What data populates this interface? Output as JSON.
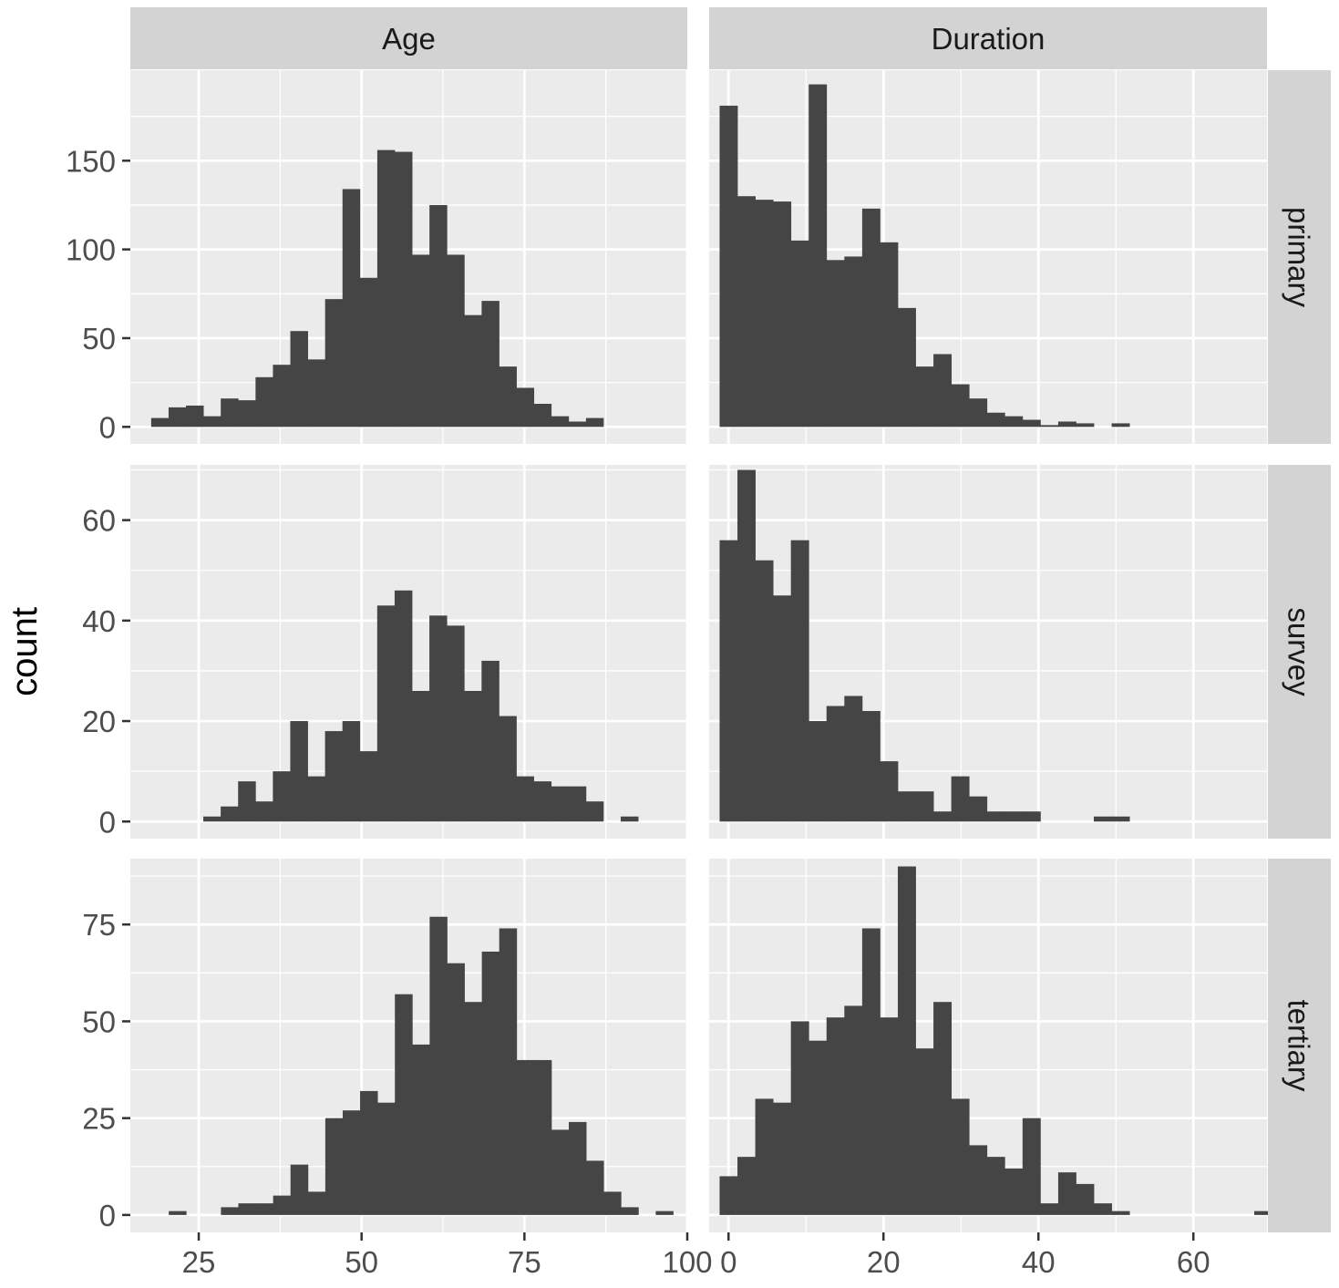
{
  "chart_data": {
    "type": "bar",
    "subtype": "histogram",
    "facet_layout": "grid",
    "ylabel": "count",
    "xlabel": "",
    "scales": "free",
    "colors": {
      "bar": "#454545",
      "panel_bg": "#ebebeb",
      "grid": "#ffffff",
      "strip_bg": "#d3d3d3",
      "tick_text": "#4d4d4d",
      "strip_text": "#1a1a1a"
    },
    "columns": [
      {
        "label": "Age",
        "xlim": [
          14.5,
          100
        ],
        "ticks": [
          25,
          50,
          75,
          100
        ]
      },
      {
        "label": "Duration",
        "xlim": [
          -2.5,
          69.5
        ],
        "ticks": [
          0,
          20,
          40,
          60
        ]
      }
    ],
    "rows": [
      {
        "label": "primary",
        "ylim": [
          -9.6,
          201
        ],
        "ticks": [
          0,
          50,
          100,
          150
        ]
      },
      {
        "label": "survey",
        "ylim": [
          -3.4,
          71
        ],
        "ticks": [
          0,
          20,
          40,
          60
        ]
      },
      {
        "label": "tertiary",
        "ylim": [
          -4.5,
          92
        ],
        "ticks": [
          0,
          25,
          50,
          75
        ]
      }
    ],
    "panels": [
      {
        "row": "primary",
        "column": "Age",
        "bin_start": 17.7,
        "bin_width": 2.67,
        "values": [
          5,
          11,
          12,
          6,
          16,
          15,
          28,
          35,
          54,
          38,
          72,
          134,
          84,
          156,
          155,
          97,
          125,
          97,
          63,
          71,
          34,
          22,
          13,
          6,
          3,
          5
        ]
      },
      {
        "row": "primary",
        "column": "Duration",
        "bin_start": -1.15,
        "bin_width": 2.3,
        "values": [
          181,
          130,
          128,
          127,
          105,
          193,
          94,
          96,
          123,
          104,
          67,
          34,
          41,
          24,
          16,
          8,
          6,
          4,
          1,
          3,
          2,
          0,
          2
        ]
      },
      {
        "row": "survey",
        "column": "Age",
        "bin_start": 25.7,
        "bin_width": 2.67,
        "values": [
          1,
          3,
          8,
          4,
          10,
          20,
          9,
          18,
          20,
          14,
          43,
          46,
          26,
          41,
          39,
          26,
          32,
          21,
          9,
          8,
          7,
          7,
          4,
          0,
          1
        ]
      },
      {
        "row": "survey",
        "column": "Duration",
        "bin_start": -1.15,
        "bin_width": 2.3,
        "values": [
          56,
          70,
          52,
          45,
          56,
          20,
          23,
          25,
          22,
          12,
          6,
          6,
          2,
          9,
          5,
          2,
          2,
          2,
          0,
          0,
          0,
          1,
          1
        ]
      },
      {
        "row": "tertiary",
        "column": "Age",
        "bin_start": 20.4,
        "bin_width": 2.67,
        "values": [
          1,
          0,
          0,
          2,
          3,
          3,
          5,
          13,
          6,
          25,
          27,
          32,
          29,
          57,
          44,
          77,
          65,
          55,
          68,
          74,
          40,
          40,
          22,
          24,
          14,
          6,
          2,
          0,
          1
        ]
      },
      {
        "row": "tertiary",
        "column": "Duration",
        "bin_start": -1.15,
        "bin_width": 2.3,
        "values": [
          10,
          15,
          30,
          29,
          50,
          45,
          51,
          54,
          74,
          51,
          90,
          43,
          55,
          30,
          18,
          15,
          12,
          25,
          3,
          11,
          8,
          3,
          1,
          0,
          0,
          0,
          0,
          0,
          0,
          0,
          1
        ]
      }
    ]
  }
}
